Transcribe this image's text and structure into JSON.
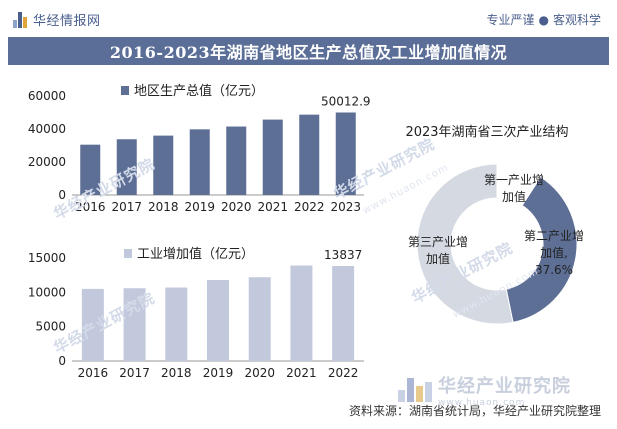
{
  "header": {
    "brand": "华经情报网",
    "slogan_left": "专业严谨",
    "slogan_sep": "●",
    "slogan_right": "客观科学"
  },
  "title": "2016-2023年湖南省地区生产总值及工业增加值情况",
  "colors": {
    "title_bg": "#5b6e97",
    "bar_gdp": "#5e6f96",
    "bar_industry": "#c3c9dc",
    "donut_secondary": "#5e6f96",
    "donut_tertiary": "#d5d9e2",
    "donut_primary": "#ffffff"
  },
  "chart_data": [
    {
      "type": "bar",
      "legend": "地区生产总值（亿元）",
      "categories": [
        "2016",
        "2017",
        "2018",
        "2019",
        "2020",
        "2021",
        "2022",
        "2023"
      ],
      "values": [
        30500,
        33800,
        36000,
        39800,
        41500,
        45700,
        48700,
        50012.9
      ],
      "data_labels": {
        "2023": "50012.9"
      },
      "y_ticks": [
        0,
        20000,
        40000,
        60000
      ],
      "ylim": [
        0,
        60000
      ]
    },
    {
      "type": "bar",
      "legend": "工业增加值（亿元）",
      "categories": [
        "2016",
        "2017",
        "2018",
        "2019",
        "2020",
        "2021",
        "2022"
      ],
      "values": [
        10500,
        10600,
        10700,
        11800,
        12200,
        13900,
        13837
      ],
      "data_labels": {
        "2022": "13837"
      },
      "y_ticks": [
        0,
        5000,
        10000,
        15000
      ],
      "ylim": [
        0,
        15000
      ]
    },
    {
      "type": "pie",
      "title": "2023年湖南省三次产业结构",
      "slices": [
        {
          "label": "第一产业增加值",
          "label_lines": [
            "第一产业增",
            "加值"
          ],
          "value": 9.2
        },
        {
          "label": "第二产业增加值",
          "label_lines": [
            "第二产业增",
            "加值,",
            "37.6%"
          ],
          "value": 37.6
        },
        {
          "label": "第三产业增加值",
          "label_lines": [
            "第三产业增",
            "加值"
          ],
          "value": 53.2
        }
      ]
    }
  ],
  "footer": {
    "source": "资料来源：湖南省统计局，华经产业研究院整理",
    "corner_logo_cn": "华经产业研究院",
    "corner_logo_en": "www.huaon.com"
  },
  "watermark": {
    "cn": "华经产业研究院",
    "en": "www.huaon.com"
  }
}
